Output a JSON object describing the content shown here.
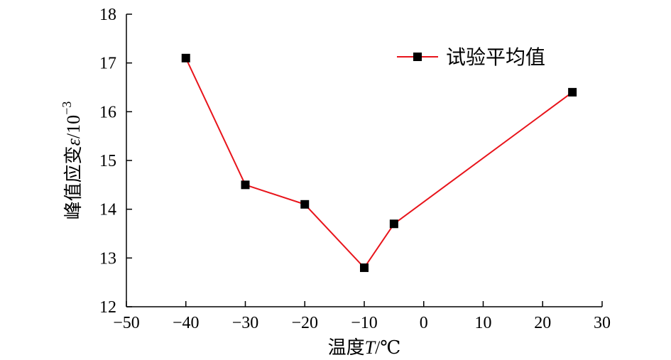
{
  "chart_data": {
    "type": "line",
    "title": "",
    "xlabel": {
      "prefix": "温度",
      "symbol": "T",
      "unit": "/℃"
    },
    "ylabel": {
      "prefix": "峰值应变",
      "symbol": "ε",
      "unit": "/10",
      "exp": "−3"
    },
    "xlim": [
      -50,
      30
    ],
    "ylim": [
      12,
      18
    ],
    "xticks": [
      -50,
      -40,
      -30,
      -20,
      -10,
      0,
      10,
      20,
      30
    ],
    "yticks": [
      12,
      13,
      14,
      15,
      16,
      17,
      18
    ],
    "xtick_labels": [
      "−50",
      "−40",
      "−30",
      "−20",
      "−10",
      "0",
      "10",
      "20",
      "30"
    ],
    "ytick_labels": [
      "12",
      "13",
      "14",
      "15",
      "16",
      "17",
      "18"
    ],
    "grid": false,
    "legend_position": "top-right",
    "series": [
      {
        "name": "试验平均值",
        "line_color": "#e8141b",
        "marker_color": "#000000",
        "marker": "square",
        "x": [
          -40,
          -30,
          -20,
          -10,
          -5,
          25
        ],
        "y": [
          17.1,
          14.5,
          14.1,
          12.8,
          13.7,
          16.4
        ]
      }
    ]
  }
}
